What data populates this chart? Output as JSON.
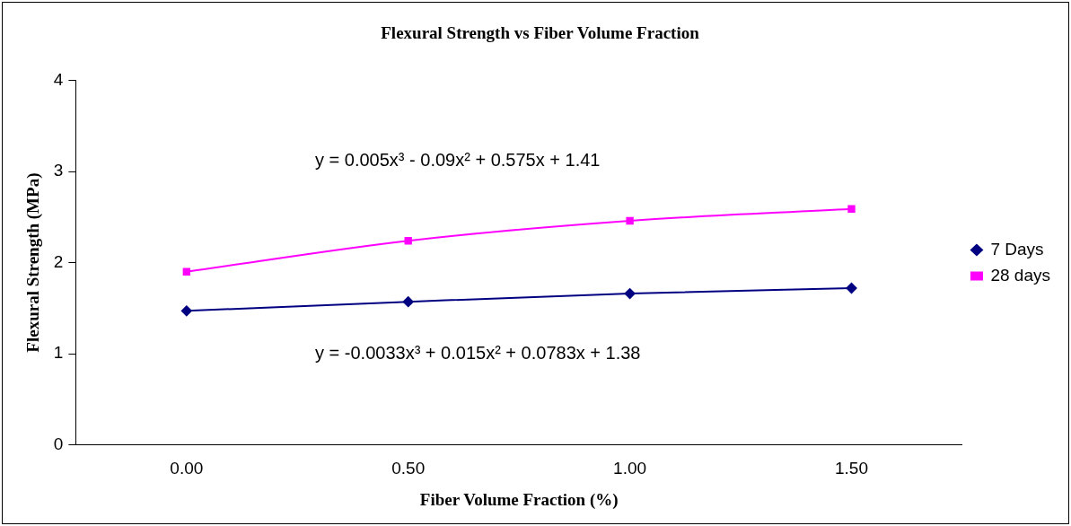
{
  "chart_data": {
    "type": "line",
    "title": "Flexural Strength vs Fiber Volume Fraction",
    "xlabel": "Fiber Volume Fraction (%)",
    "ylabel": "Flexural Strength (MPa)",
    "categories": [
      "0.00",
      "0.50",
      "1.00",
      "1.50"
    ],
    "series": [
      {
        "name": "7 Days",
        "color": "#000080",
        "marker": "diamond",
        "values": [
          1.47,
          1.57,
          1.66,
          1.72
        ]
      },
      {
        "name": "28 days",
        "color": "#ff00ff",
        "marker": "square",
        "values": [
          1.9,
          2.24,
          2.46,
          2.59
        ]
      }
    ],
    "ylim": [
      0,
      4
    ],
    "yticks": [
      0,
      1,
      2,
      3,
      4
    ],
    "grid": false,
    "legend": "right",
    "line_style": "solid",
    "annotations": [
      "y = 0.005x³ - 0.09x² + 0.575x + 1.41",
      "y = -0.0033x³ + 0.015x² + 0.0783x + 1.38"
    ]
  }
}
